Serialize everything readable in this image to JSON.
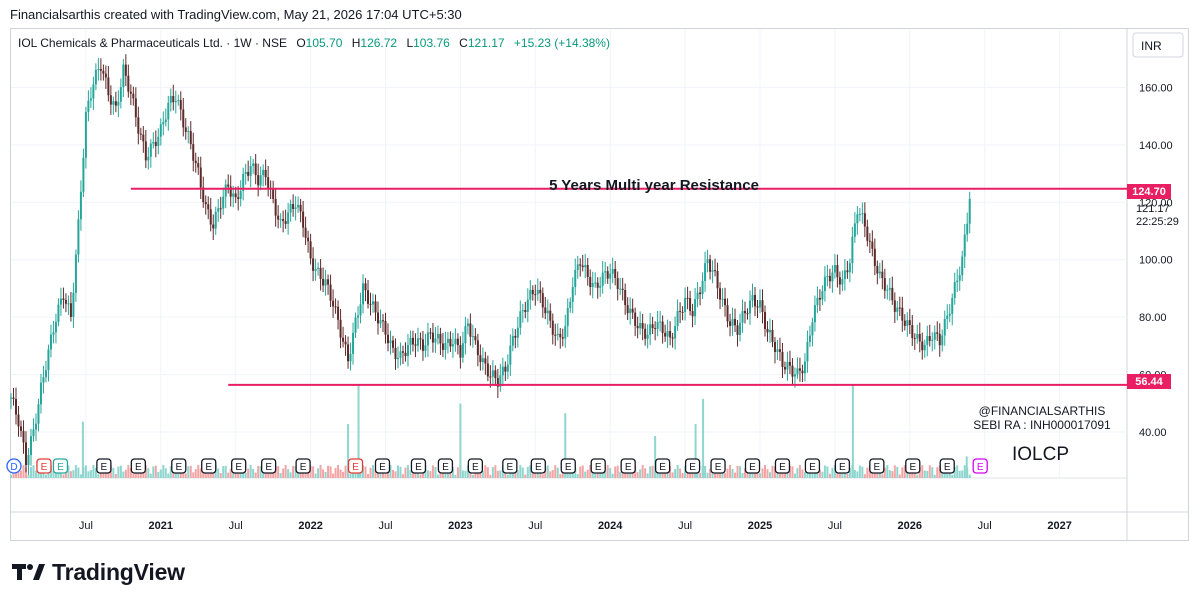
{
  "header": {
    "text": "Financialsarthis created with TradingView.com, May 21, 2026 17:04 UTC+5:30"
  },
  "legend": {
    "symbol": "IOL Chemicals & Pharmaceuticals Ltd. · 1W · NSE",
    "o_label": "O",
    "o_value": "105.70",
    "h_label": "H",
    "h_value": "126.72",
    "l_label": "L",
    "l_value": "103.76",
    "c_label": "C",
    "c_value": "121.17",
    "change": "+15.23 (+14.38%)"
  },
  "currency": "INR",
  "annotations": {
    "resistance_label": "5 Years Multi year Resistance",
    "watermark_line1": "@FINANCIALSARTHIS",
    "watermark_line2": "SEBI RA : INH000017091",
    "ticker": "IOLCP"
  },
  "price_badges": {
    "resistance": "124.70",
    "support": "56.44",
    "last_price": "121.17",
    "countdown": "22:25:29"
  },
  "brand": {
    "name": "TradingView"
  },
  "colors": {
    "up": "#26a69a",
    "down": "#5d2a2a",
    "line": "#e91e63",
    "grid": "#f0f3fa",
    "text": "#131722",
    "volume_up": "#8fd6cf",
    "volume_down": "#f3a5a5"
  },
  "chart_data": {
    "type": "candlestick",
    "title": "IOL Chemicals & Pharmaceuticals Ltd. · 1W · NSE",
    "x_ticks": [
      "Jul",
      "2021",
      "Jul",
      "2022",
      "Jul",
      "2023",
      "Jul",
      "2024",
      "Jul",
      "2025",
      "Jul",
      "2026",
      "Jul",
      "2027"
    ],
    "y_ticks": [
      "160.00",
      "140.00",
      "120.00",
      "100.00",
      "80.00",
      "60.00",
      "40.00"
    ],
    "y_range": [
      24,
      180
    ],
    "x_range": [
      2020.0,
      2027.45
    ],
    "levels": [
      {
        "name": "5 Years Multi year Resistance",
        "value": 124.7,
        "x_start": 2020.8
      },
      {
        "name": "support",
        "value": 56.44,
        "x_start": 2021.45
      }
    ],
    "price_points": [
      [
        2020.0,
        52
      ],
      [
        2020.05,
        44
      ],
      [
        2020.1,
        30
      ],
      [
        2020.15,
        40
      ],
      [
        2020.2,
        55
      ],
      [
        2020.25,
        68
      ],
      [
        2020.3,
        80
      ],
      [
        2020.35,
        88
      ],
      [
        2020.4,
        80
      ],
      [
        2020.45,
        112
      ],
      [
        2020.5,
        150
      ],
      [
        2020.55,
        162
      ],
      [
        2020.6,
        168
      ],
      [
        2020.65,
        158
      ],
      [
        2020.7,
        152
      ],
      [
        2020.75,
        166
      ],
      [
        2020.8,
        158
      ],
      [
        2020.85,
        146
      ],
      [
        2020.9,
        136
      ],
      [
        2020.95,
        140
      ],
      [
        2021.0,
        145
      ],
      [
        2021.05,
        154
      ],
      [
        2021.1,
        157
      ],
      [
        2021.15,
        148
      ],
      [
        2021.2,
        140
      ],
      [
        2021.25,
        130
      ],
      [
        2021.3,
        118
      ],
      [
        2021.35,
        112
      ],
      [
        2021.4,
        120
      ],
      [
        2021.45,
        126
      ],
      [
        2021.5,
        120
      ],
      [
        2021.55,
        128
      ],
      [
        2021.6,
        133
      ],
      [
        2021.65,
        128
      ],
      [
        2021.7,
        130
      ],
      [
        2021.75,
        120
      ],
      [
        2021.8,
        112
      ],
      [
        2021.85,
        116
      ],
      [
        2021.9,
        120
      ],
      [
        2021.95,
        113
      ],
      [
        2022.0,
        100
      ],
      [
        2022.05,
        95
      ],
      [
        2022.1,
        92
      ],
      [
        2022.15,
        85
      ],
      [
        2022.2,
        75
      ],
      [
        2022.25,
        65
      ],
      [
        2022.3,
        78
      ],
      [
        2022.35,
        90
      ],
      [
        2022.4,
        85
      ],
      [
        2022.45,
        80
      ],
      [
        2022.5,
        75
      ],
      [
        2022.55,
        68
      ],
      [
        2022.6,
        66
      ],
      [
        2022.65,
        70
      ],
      [
        2022.7,
        72
      ],
      [
        2022.75,
        70
      ],
      [
        2022.8,
        74
      ],
      [
        2022.85,
        72
      ],
      [
        2022.9,
        70
      ],
      [
        2022.95,
        72
      ],
      [
        2023.0,
        68
      ],
      [
        2023.05,
        78
      ],
      [
        2023.1,
        70
      ],
      [
        2023.15,
        64
      ],
      [
        2023.2,
        60
      ],
      [
        2023.25,
        58
      ],
      [
        2023.3,
        62
      ],
      [
        2023.35,
        72
      ],
      [
        2023.4,
        80
      ],
      [
        2023.45,
        86
      ],
      [
        2023.5,
        90
      ],
      [
        2023.55,
        85
      ],
      [
        2023.6,
        78
      ],
      [
        2023.65,
        72
      ],
      [
        2023.7,
        76
      ],
      [
        2023.75,
        92
      ],
      [
        2023.8,
        100
      ],
      [
        2023.85,
        94
      ],
      [
        2023.9,
        90
      ],
      [
        2023.95,
        94
      ],
      [
        2024.0,
        96
      ],
      [
        2024.05,
        92
      ],
      [
        2024.1,
        85
      ],
      [
        2024.15,
        80
      ],
      [
        2024.2,
        76
      ],
      [
        2024.25,
        74
      ],
      [
        2024.3,
        78
      ],
      [
        2024.35,
        76
      ],
      [
        2024.4,
        72
      ],
      [
        2024.45,
        80
      ],
      [
        2024.5,
        86
      ],
      [
        2024.55,
        82
      ],
      [
        2024.6,
        90
      ],
      [
        2024.65,
        100
      ],
      [
        2024.7,
        94
      ],
      [
        2024.75,
        85
      ],
      [
        2024.8,
        78
      ],
      [
        2024.85,
        76
      ],
      [
        2024.9,
        82
      ],
      [
        2024.95,
        86
      ],
      [
        2025.0,
        84
      ],
      [
        2025.05,
        75
      ],
      [
        2025.1,
        70
      ],
      [
        2025.15,
        64
      ],
      [
        2025.2,
        62
      ],
      [
        2025.25,
        60
      ],
      [
        2025.3,
        64
      ],
      [
        2025.35,
        80
      ],
      [
        2025.4,
        88
      ],
      [
        2025.45,
        94
      ],
      [
        2025.5,
        96
      ],
      [
        2025.55,
        92
      ],
      [
        2025.6,
        100
      ],
      [
        2025.65,
        118
      ],
      [
        2025.7,
        112
      ],
      [
        2025.75,
        102
      ],
      [
        2025.8,
        94
      ],
      [
        2025.85,
        90
      ],
      [
        2025.9,
        84
      ],
      [
        2025.95,
        80
      ],
      [
        2026.0,
        76
      ],
      [
        2026.05,
        72
      ],
      [
        2026.1,
        70
      ],
      [
        2026.15,
        74
      ],
      [
        2026.2,
        72
      ],
      [
        2026.25,
        80
      ],
      [
        2026.3,
        90
      ],
      [
        2026.35,
        100
      ],
      [
        2026.4,
        121.17
      ]
    ],
    "volume_spikes": [
      [
        2020.48,
        0.47
      ],
      [
        2022.25,
        0.45
      ],
      [
        2022.32,
        0.78
      ],
      [
        2023.0,
        0.62
      ],
      [
        2023.7,
        0.54
      ],
      [
        2024.3,
        0.35
      ],
      [
        2024.57,
        0.45
      ],
      [
        2024.62,
        0.66
      ],
      [
        2025.62,
        0.78
      ],
      [
        2026.38,
        0.18
      ]
    ],
    "event_markers": [
      {
        "x": 2020.02,
        "label": "D",
        "color": "#2962ff",
        "border_color": "#2962ff"
      },
      {
        "x": 2020.22,
        "label": "E",
        "color": "#e53935",
        "border_color": "#e53935"
      },
      {
        "x": 2020.33,
        "label": "E",
        "color": "#26a69a",
        "border_color": "#26a69a"
      },
      {
        "x": 2020.62,
        "label": "E",
        "color": "#131722",
        "border_color": "#131722"
      },
      {
        "x": 2020.85,
        "label": "E",
        "color": "#131722",
        "border_color": "#131722"
      },
      {
        "x": 2021.12,
        "label": "E",
        "color": "#131722",
        "border_color": "#131722"
      },
      {
        "x": 2021.32,
        "label": "E",
        "color": "#131722",
        "border_color": "#131722"
      },
      {
        "x": 2021.52,
        "label": "E",
        "color": "#131722",
        "border_color": "#131722"
      },
      {
        "x": 2021.72,
        "label": "E",
        "color": "#131722",
        "border_color": "#131722"
      },
      {
        "x": 2021.95,
        "label": "E",
        "color": "#131722",
        "border_color": "#131722"
      },
      {
        "x": 2022.3,
        "label": "E",
        "color": "#e53935",
        "border_color": "#e53935"
      },
      {
        "x": 2022.48,
        "label": "E",
        "color": "#131722",
        "border_color": "#131722"
      },
      {
        "x": 2022.72,
        "label": "E",
        "color": "#131722",
        "border_color": "#131722"
      },
      {
        "x": 2022.9,
        "label": "E",
        "color": "#131722",
        "border_color": "#131722"
      },
      {
        "x": 2023.1,
        "label": "E",
        "color": "#131722",
        "border_color": "#131722"
      },
      {
        "x": 2023.33,
        "label": "E",
        "color": "#131722",
        "border_color": "#131722"
      },
      {
        "x": 2023.52,
        "label": "E",
        "color": "#131722",
        "border_color": "#131722"
      },
      {
        "x": 2023.72,
        "label": "E",
        "color": "#131722",
        "border_color": "#131722"
      },
      {
        "x": 2023.92,
        "label": "E",
        "color": "#131722",
        "border_color": "#131722"
      },
      {
        "x": 2024.12,
        "label": "E",
        "color": "#131722",
        "border_color": "#131722"
      },
      {
        "x": 2024.35,
        "label": "E",
        "color": "#131722",
        "border_color": "#131722"
      },
      {
        "x": 2024.55,
        "label": "E",
        "color": "#131722",
        "border_color": "#131722"
      },
      {
        "x": 2024.72,
        "label": "E",
        "color": "#131722",
        "border_color": "#131722"
      },
      {
        "x": 2024.95,
        "label": "E",
        "color": "#131722",
        "border_color": "#131722"
      },
      {
        "x": 2025.15,
        "label": "E",
        "color": "#131722",
        "border_color": "#131722"
      },
      {
        "x": 2025.35,
        "label": "E",
        "color": "#131722",
        "border_color": "#131722"
      },
      {
        "x": 2025.55,
        "label": "E",
        "color": "#131722",
        "border_color": "#131722"
      },
      {
        "x": 2025.78,
        "label": "E",
        "color": "#131722",
        "border_color": "#131722"
      },
      {
        "x": 2026.02,
        "label": "E",
        "color": "#131722",
        "border_color": "#131722"
      },
      {
        "x": 2026.25,
        "label": "E",
        "color": "#131722",
        "border_color": "#131722"
      },
      {
        "x": 2026.47,
        "label": "E",
        "color": "#d500f9",
        "border_color": "#d500f9"
      }
    ]
  }
}
